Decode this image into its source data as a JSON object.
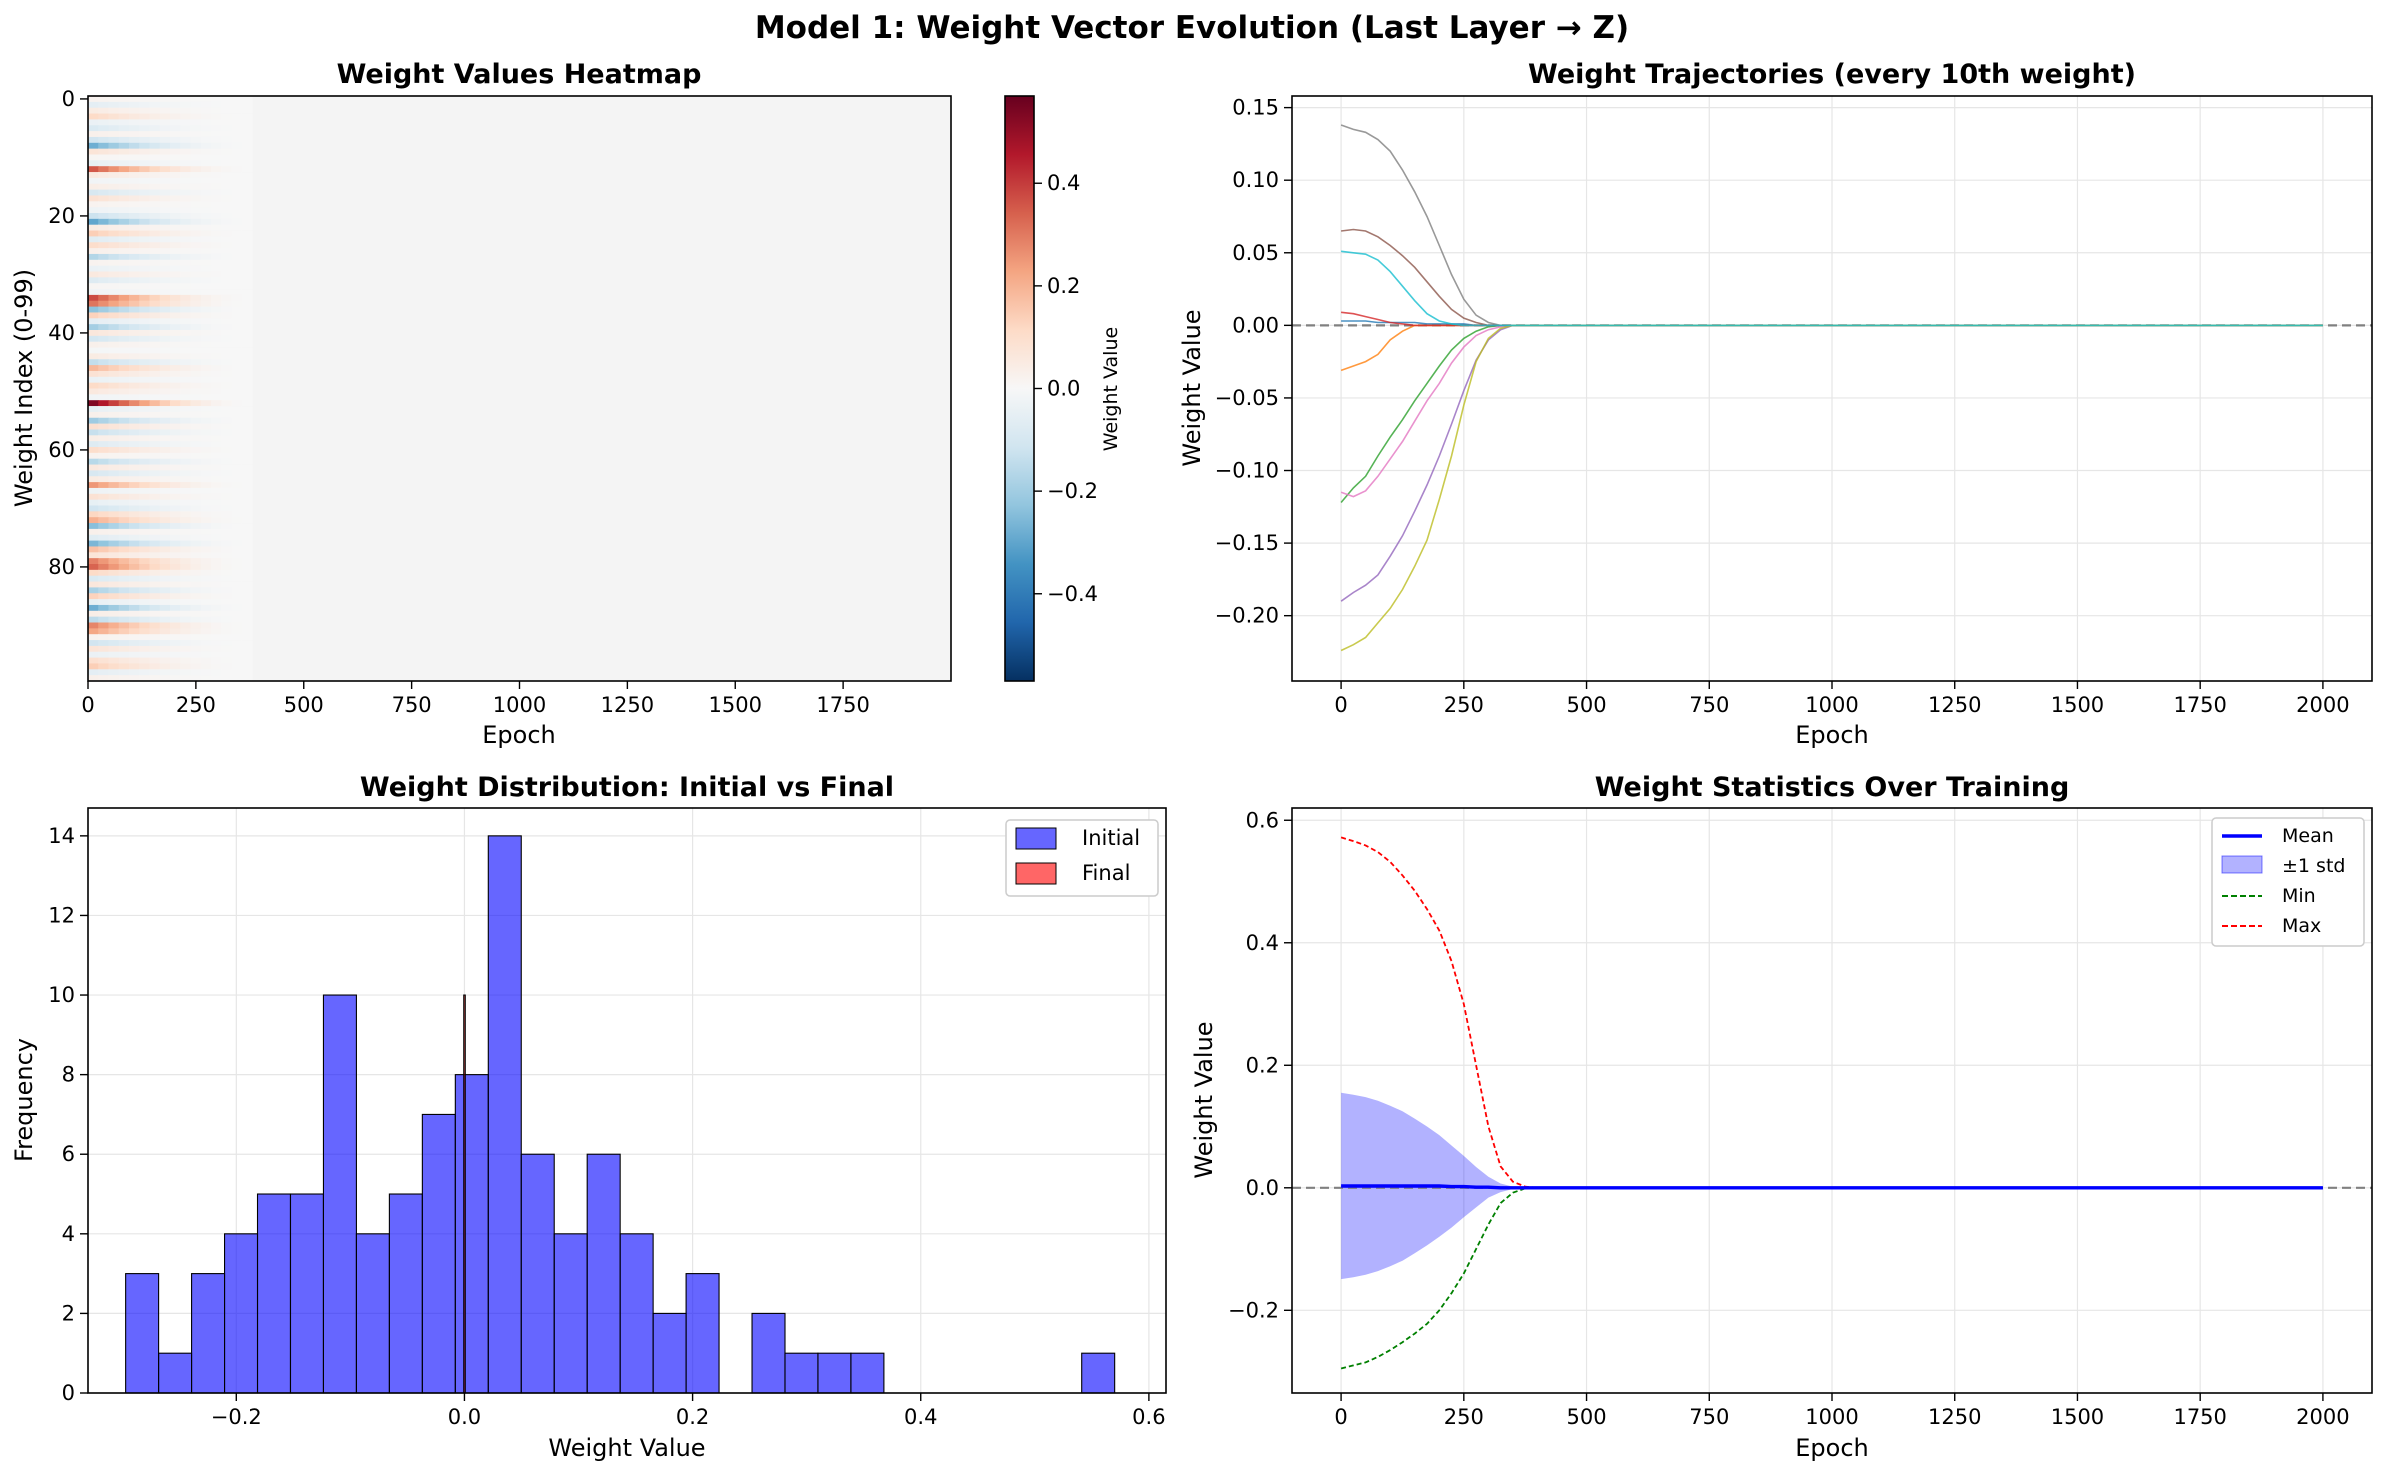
{
  "figure": {
    "title": "Model 1: Weight Vector Evolution (Last Layer → Z)"
  },
  "chart_data": [
    {
      "id": "heatmap",
      "type": "heatmap",
      "title": "Weight Values Heatmap",
      "xlabel": "Epoch",
      "ylabel": "Weight Index (0-99)",
      "xlim": [
        0,
        2000
      ],
      "ylim": [
        99.5,
        -0.5
      ],
      "xticks": [
        0,
        250,
        500,
        750,
        1000,
        1250,
        1500,
        1750
      ],
      "yticks": [
        0,
        20,
        40,
        60,
        80
      ],
      "colormap": "RdBu_r",
      "colorbar": {
        "label": "Weight Value",
        "range": [
          -0.57,
          0.57
        ],
        "ticks": [
          -0.4,
          -0.2,
          0.0,
          0.2,
          0.4
        ]
      },
      "decay_epoch": 380,
      "initial_weights": [
        0.02,
        -0.06,
        0.05,
        0.12,
        -0.04,
        -0.09,
        0.03,
        -0.12,
        -0.3,
        0.08,
        0.01,
        -0.05,
        0.38,
        0.06,
        -0.02,
        0.04,
        -0.1,
        0.09,
        0.02,
        -0.03,
        -0.13,
        -0.32,
        0.05,
        0.15,
        -0.07,
        0.11,
        0.03,
        -0.18,
        0.02,
        -0.04,
        0.06,
        -0.08,
        0.01,
        -0.02,
        0.4,
        0.33,
        -0.25,
        0.14,
        -0.06,
        -0.21,
        0.07,
        -0.11,
        0.03,
        -0.01,
        0.05,
        -0.15,
        0.2,
        0.09,
        -0.04,
        0.12,
        0.06,
        -0.02,
        0.57,
        -0.05,
        0.03,
        -0.22,
        0.1,
        -0.14,
        0.04,
        -0.08,
        0.11,
        0.02,
        -0.17,
        0.06,
        -0.1,
        0.05,
        0.27,
        -0.03,
        0.09,
        -0.05,
        -0.12,
        0.13,
        0.22,
        -0.26,
        0.03,
        -0.07,
        -0.28,
        0.18,
        0.08,
        0.31,
        0.36,
        0.12,
        -0.09,
        0.07,
        -0.2,
        0.14,
        -0.05,
        -0.3,
        0.04,
        -0.16,
        0.3,
        0.24,
        0.02,
        -0.12,
        0.08,
        -0.04,
        0.1,
        0.15,
        -0.06,
        0.03
      ]
    },
    {
      "id": "trajectories",
      "type": "line",
      "title": "Weight Trajectories (every 10th weight)",
      "xlabel": "Epoch",
      "ylabel": "Weight Value",
      "xlim": [
        -100,
        2100
      ],
      "ylim": [
        -0.245,
        0.158
      ],
      "xticks": [
        0,
        250,
        500,
        750,
        1000,
        1250,
        1500,
        1750,
        2000
      ],
      "yticks": [
        -0.2,
        -0.15,
        -0.1,
        -0.05,
        0.0,
        0.05,
        0.1,
        0.15
      ],
      "grid": true,
      "zero_line": true,
      "x": [
        0,
        25,
        50,
        75,
        100,
        125,
        150,
        175,
        200,
        225,
        250,
        275,
        300,
        325,
        350,
        375,
        400,
        450,
        500,
        600,
        800,
        1000,
        1200,
        1400,
        1600,
        1800,
        2000
      ],
      "series": [
        {
          "color": "#1f77b4",
          "values": [
            0.003,
            0.003,
            0.003,
            0.002,
            0.002,
            0.002,
            0.002,
            0.001,
            0.001,
            0.001,
            0.001,
            0.0,
            0.0,
            0.0,
            0.0,
            0.0,
            0.0,
            0.0,
            0.0,
            0.0,
            0.0,
            0.0,
            0.0,
            0.0,
            0.0,
            0.0,
            0.0
          ]
        },
        {
          "color": "#ff7f0e",
          "values": [
            -0.031,
            -0.028,
            -0.025,
            -0.02,
            -0.01,
            -0.004,
            0.0,
            0.0,
            0.0,
            0.0,
            0.0,
            0.0,
            0.0,
            0.0,
            0.0,
            0.0,
            0.0,
            0.0,
            0.0,
            0.0,
            0.0,
            0.0,
            0.0,
            0.0,
            0.0,
            0.0,
            0.0
          ]
        },
        {
          "color": "#2ca02c",
          "values": [
            -0.122,
            -0.112,
            -0.104,
            -0.09,
            -0.077,
            -0.065,
            -0.052,
            -0.04,
            -0.028,
            -0.017,
            -0.009,
            -0.004,
            -0.001,
            0.0,
            0.0,
            0.0,
            0.0,
            0.0,
            0.0,
            0.0,
            0.0,
            0.0,
            0.0,
            0.0,
            0.0,
            0.0,
            0.0
          ]
        },
        {
          "color": "#d62728",
          "values": [
            0.009,
            0.008,
            0.006,
            0.004,
            0.002,
            0.001,
            0.0,
            0.0,
            0.0,
            0.0,
            0.0,
            0.0,
            0.0,
            0.0,
            0.0,
            0.0,
            0.0,
            0.0,
            0.0,
            0.0,
            0.0,
            0.0,
            0.0,
            0.0,
            0.0,
            0.0,
            0.0
          ]
        },
        {
          "color": "#9467bd",
          "values": [
            -0.19,
            -0.184,
            -0.179,
            -0.172,
            -0.159,
            -0.145,
            -0.128,
            -0.11,
            -0.09,
            -0.068,
            -0.045,
            -0.024,
            -0.01,
            -0.003,
            0.0,
            0.0,
            0.0,
            0.0,
            0.0,
            0.0,
            0.0,
            0.0,
            0.0,
            0.0,
            0.0,
            0.0,
            0.0
          ]
        },
        {
          "color": "#8c564b",
          "values": [
            0.065,
            0.066,
            0.065,
            0.061,
            0.055,
            0.048,
            0.04,
            0.03,
            0.02,
            0.011,
            0.005,
            0.002,
            0.0,
            0.0,
            0.0,
            0.0,
            0.0,
            0.0,
            0.0,
            0.0,
            0.0,
            0.0,
            0.0,
            0.0,
            0.0,
            0.0,
            0.0
          ]
        },
        {
          "color": "#e377c2",
          "values": [
            -0.115,
            -0.118,
            -0.114,
            -0.104,
            -0.092,
            -0.08,
            -0.066,
            -0.052,
            -0.04,
            -0.026,
            -0.015,
            -0.007,
            -0.003,
            -0.001,
            0.0,
            0.0,
            0.0,
            0.0,
            0.0,
            0.0,
            0.0,
            0.0,
            0.0,
            0.0,
            0.0,
            0.0,
            0.0
          ]
        },
        {
          "color": "#7f7f7f",
          "values": [
            0.138,
            0.135,
            0.133,
            0.128,
            0.12,
            0.107,
            0.092,
            0.075,
            0.055,
            0.035,
            0.018,
            0.007,
            0.002,
            0.0,
            0.0,
            0.0,
            0.0,
            0.0,
            0.0,
            0.0,
            0.0,
            0.0,
            0.0,
            0.0,
            0.0,
            0.0,
            0.0
          ]
        },
        {
          "color": "#bcbd22",
          "values": [
            -0.224,
            -0.22,
            -0.215,
            -0.205,
            -0.195,
            -0.182,
            -0.166,
            -0.148,
            -0.12,
            -0.09,
            -0.055,
            -0.025,
            -0.009,
            -0.002,
            0.0,
            0.0,
            0.0,
            0.0,
            0.0,
            0.0,
            0.0,
            0.0,
            0.0,
            0.0,
            0.0,
            0.0,
            0.0
          ]
        },
        {
          "color": "#17becf",
          "values": [
            0.051,
            0.05,
            0.049,
            0.045,
            0.037,
            0.027,
            0.017,
            0.008,
            0.003,
            0.001,
            0.0,
            0.0,
            0.0,
            0.0,
            0.0,
            0.0,
            0.0,
            0.0,
            0.0,
            0.0,
            0.0,
            0.0,
            0.0,
            0.0,
            0.0,
            0.0,
            0.0
          ]
        }
      ]
    },
    {
      "id": "histogram",
      "type": "bar",
      "title": "Weight Distribution: Initial vs Final",
      "xlabel": "Weight Value",
      "ylabel": "Frequency",
      "xlim": [
        -0.33,
        0.615
      ],
      "ylim": [
        0,
        14.7
      ],
      "xticks": [
        -0.2,
        0.0,
        0.2,
        0.4,
        0.6
      ],
      "yticks": [
        0,
        2,
        4,
        6,
        8,
        10,
        12,
        14
      ],
      "grid": true,
      "legend_position": "top-right",
      "bin_start": -0.297,
      "bin_width": 0.0289,
      "series": [
        {
          "name": "Initial",
          "color": "#0000ff",
          "values": [
            3,
            1,
            3,
            4,
            5,
            5,
            10,
            4,
            5,
            7,
            8,
            14,
            6,
            4,
            6,
            4,
            2,
            3,
            0,
            2,
            1,
            1,
            1,
            0,
            0,
            0,
            0,
            0,
            0,
            1
          ]
        },
        {
          "name": "Final",
          "color": "#ff0000",
          "bin_center": 0.0,
          "bin_width": 0.0012,
          "value": 10
        }
      ]
    },
    {
      "id": "statistics",
      "type": "line",
      "title": "Weight Statistics Over Training",
      "xlabel": "Epoch",
      "ylabel": "Weight Value",
      "xlim": [
        -100,
        2100
      ],
      "ylim": [
        -0.335,
        0.62
      ],
      "xticks": [
        0,
        250,
        500,
        750,
        1000,
        1250,
        1500,
        1750,
        2000
      ],
      "yticks": [
        -0.2,
        0.0,
        0.2,
        0.4,
        0.6
      ],
      "grid": true,
      "zero_line": true,
      "legend_position": "top-right",
      "x": [
        0,
        25,
        50,
        75,
        100,
        125,
        150,
        175,
        200,
        225,
        250,
        275,
        300,
        325,
        350,
        375,
        400,
        450,
        500,
        600,
        800,
        1000,
        1200,
        1400,
        1600,
        1800,
        2000
      ],
      "series": [
        {
          "name": "Mean",
          "color": "#0000ff",
          "values": [
            0.003,
            0.003,
            0.003,
            0.003,
            0.003,
            0.003,
            0.003,
            0.003,
            0.003,
            0.002,
            0.002,
            0.001,
            0.001,
            0.0,
            0.0,
            0.0,
            0.0,
            0.0,
            0.0,
            0.0,
            0.0,
            0.0,
            0.0,
            0.0,
            0.0,
            0.0,
            0.0
          ]
        },
        {
          "name": "±1 std",
          "color": "#0000ff",
          "values": [
            0.152,
            0.149,
            0.145,
            0.139,
            0.131,
            0.122,
            0.11,
            0.097,
            0.083,
            0.067,
            0.05,
            0.033,
            0.017,
            0.007,
            0.002,
            0.0,
            0.0,
            0.0,
            0.0,
            0.0,
            0.0,
            0.0,
            0.0,
            0.0,
            0.0,
            0.0,
            0.0
          ]
        },
        {
          "name": "Min",
          "color": "#008000",
          "values": [
            -0.295,
            -0.29,
            -0.285,
            -0.276,
            -0.265,
            -0.252,
            -0.238,
            -0.222,
            -0.2,
            -0.172,
            -0.14,
            -0.1,
            -0.06,
            -0.025,
            -0.008,
            -0.001,
            0.0,
            0.0,
            0.0,
            0.0,
            0.0,
            0.0,
            0.0,
            0.0,
            0.0,
            0.0,
            0.0
          ]
        },
        {
          "name": "Max",
          "color": "#ff0000",
          "values": [
            0.572,
            0.566,
            0.559,
            0.548,
            0.532,
            0.51,
            0.485,
            0.455,
            0.42,
            0.37,
            0.3,
            0.2,
            0.1,
            0.035,
            0.01,
            0.002,
            0.0,
            0.0,
            0.0,
            0.0,
            0.0,
            0.0,
            0.0,
            0.0,
            0.0,
            0.0,
            0.0
          ]
        }
      ]
    }
  ]
}
